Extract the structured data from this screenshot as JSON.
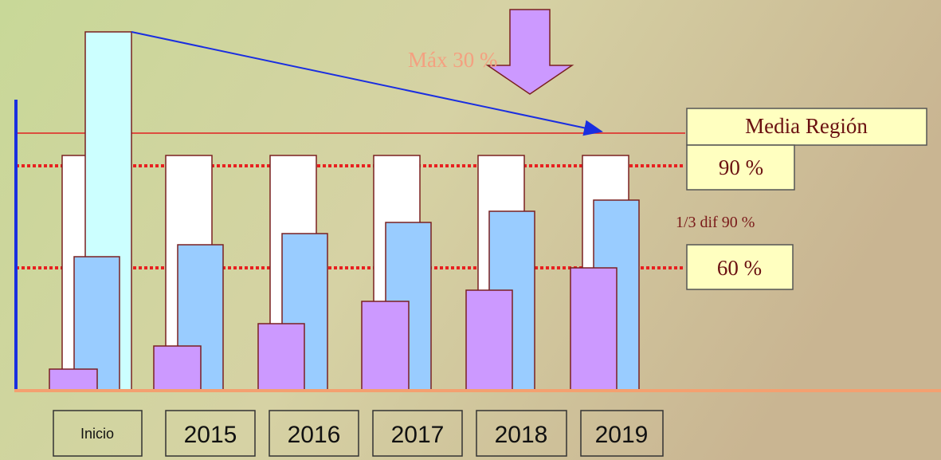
{
  "annotation": "Máx 30 %",
  "reference_boxes": [
    "Media Región",
    "90 %",
    "60 %"
  ],
  "note": "1/3 dif 90 %",
  "periods": [
    "Inicio",
    "2015",
    "2016",
    "2017",
    "2018",
    "2019"
  ]
}
